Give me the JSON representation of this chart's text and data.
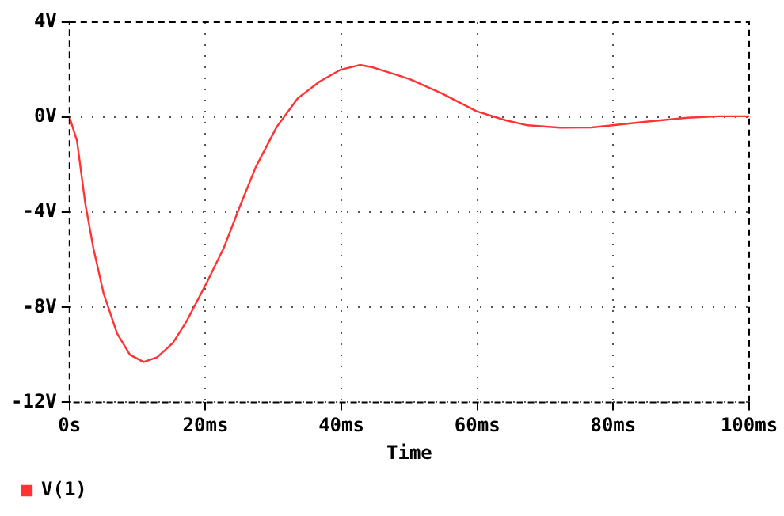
{
  "chart_data": {
    "type": "line",
    "xlabel": "Time",
    "xlim": [
      0,
      100
    ],
    "ylim": [
      -12,
      4
    ],
    "xticks": [
      {
        "value": 0,
        "label": "0s"
      },
      {
        "value": 20,
        "label": "20ms"
      },
      {
        "value": 40,
        "label": "40ms"
      },
      {
        "value": 60,
        "label": "60ms"
      },
      {
        "value": 80,
        "label": "80ms"
      },
      {
        "value": 100,
        "label": "100ms"
      }
    ],
    "yticks": [
      {
        "value": 4,
        "label": "4V"
      },
      {
        "value": 0,
        "label": "0V"
      },
      {
        "value": -4,
        "label": "-4V"
      },
      {
        "value": -8,
        "label": "-8V"
      },
      {
        "value": -12,
        "label": "-12V"
      }
    ],
    "grid": true,
    "legend": "bottom left",
    "line_style": "solid",
    "series": [
      {
        "name": "V(1)",
        "color": "#ff3333",
        "x": [
          0,
          1.1,
          2.3,
          3.5,
          5.0,
          7.0,
          8.9,
          10.9,
          12.9,
          15.2,
          17.2,
          20.3,
          22.7,
          25.0,
          27.4,
          30.5,
          33.6,
          36.8,
          39.9,
          42.7,
          44.6,
          50.1,
          54.8,
          59.9,
          64.2,
          67.4,
          72.1,
          76.8,
          79.9,
          85.4,
          90.9,
          95.6,
          100
        ],
        "values": [
          0,
          -1.0,
          -3.6,
          -5.5,
          -7.4,
          -9.1,
          -10.0,
          -10.3,
          -10.1,
          -9.5,
          -8.6,
          -6.9,
          -5.5,
          -3.8,
          -2.1,
          -0.4,
          0.8,
          1.5,
          2.0,
          2.2,
          2.1,
          1.6,
          1.0,
          0.25,
          -0.13,
          -0.34,
          -0.44,
          -0.43,
          -0.34,
          -0.17,
          -0.02,
          0.04,
          0.04
        ]
      }
    ]
  }
}
